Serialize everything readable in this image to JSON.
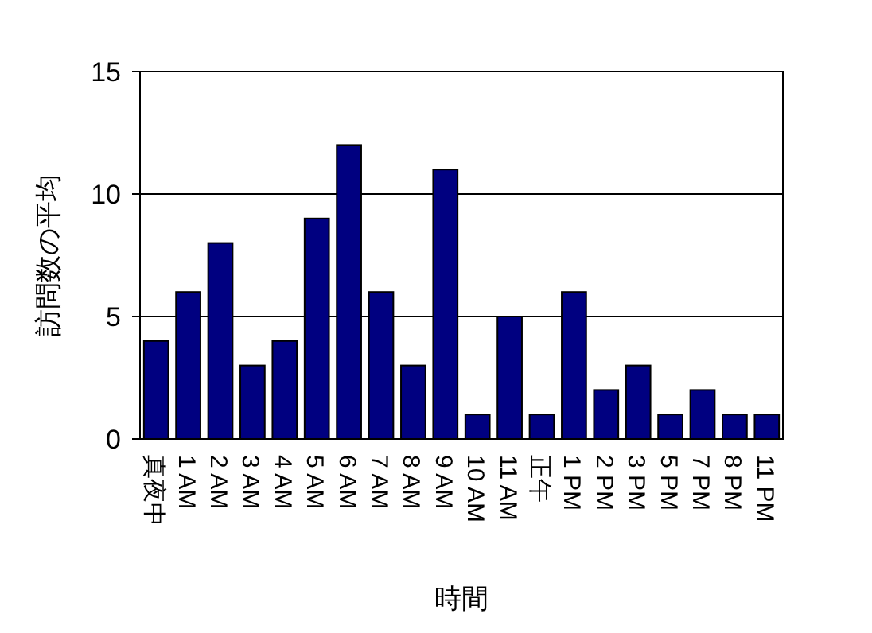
{
  "chart_data": {
    "type": "bar",
    "xlabel": "時間",
    "ylabel": "訪問数の平均",
    "categories": [
      "真夜中",
      "1 AM",
      "2 AM",
      "3 AM",
      "4 AM",
      "5 AM",
      "6 AM",
      "7 AM",
      "8 AM",
      "9 AM",
      "10 AM",
      "11 AM",
      "正午",
      "1 PM",
      "2 PM",
      "3 PM",
      "5 PM",
      "7 PM",
      "8 PM",
      "11 PM"
    ],
    "values": [
      4,
      6,
      8,
      3,
      4,
      9,
      12,
      6,
      3,
      11,
      1,
      5,
      1,
      6,
      2,
      3,
      1,
      2,
      1,
      1
    ],
    "color": "#000080",
    "ylim": [
      0,
      15
    ],
    "yticks": [
      0,
      5,
      10,
      15
    ],
    "grid": "y"
  }
}
